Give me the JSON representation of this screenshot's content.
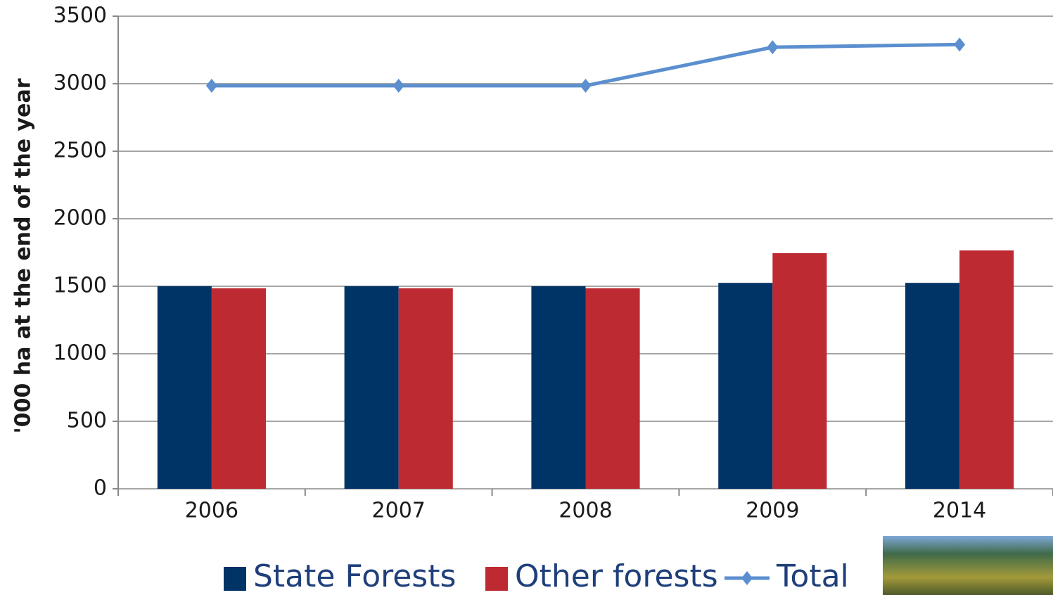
{
  "chart_data": {
    "type": "bar_line",
    "y_axis_label": "'000 ha at the end of the year",
    "categories": [
      "2006",
      "2007",
      "2008",
      "2009",
      "2014"
    ],
    "series": [
      {
        "name": "State Forests",
        "type": "bar",
        "color": "#003366",
        "values": [
          1500,
          1500,
          1500,
          1525,
          1525
        ]
      },
      {
        "name": "Other forests",
        "type": "bar",
        "color": "#be2a32",
        "values": [
          1485,
          1485,
          1485,
          1745,
          1765
        ]
      },
      {
        "name": "Total",
        "type": "line",
        "color": "#5b8fcf",
        "values": [
          2985,
          2985,
          2985,
          3270,
          3290
        ]
      }
    ],
    "ylim": [
      0,
      3500
    ],
    "yticks": [
      0,
      500,
      1000,
      1500,
      2000,
      2500,
      3000,
      3500
    ],
    "grid": true
  }
}
